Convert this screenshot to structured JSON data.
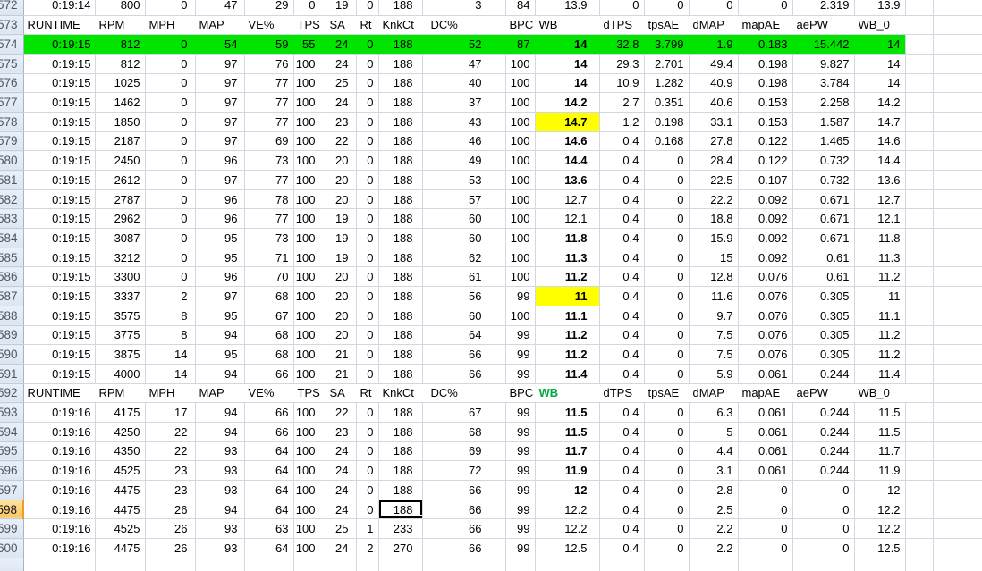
{
  "sheet": {
    "columns": [
      "RUNTIME",
      "RPM",
      "MPH",
      "MAP",
      "VE%",
      "TPS",
      "SA",
      "Rt",
      "KnkCt",
      "DC%",
      "BPC",
      "WB",
      "dTPS",
      "tpsAE",
      "dMAP",
      "mapAE",
      "aePW",
      "WB_0"
    ],
    "colors": {
      "row-highlight": "#00e400",
      "cell-highlight": "#ffff00",
      "wb-red": "#d60000",
      "wb-green": "#00a63f",
      "grid-line": "#d0d7e5",
      "active-row-header-border": "#ef9e17"
    },
    "rows": [
      {
        "n": "572",
        "cells": [
          "0:19:14",
          "800",
          "0",
          "47",
          "29",
          "0",
          "19",
          "0",
          "188",
          "3",
          "84",
          "13.9",
          "0",
          "0",
          "0",
          "0",
          "2.319",
          "13.9"
        ],
        "wb": "plain"
      },
      {
        "n": "573",
        "header": true
      },
      {
        "n": "574",
        "row_bg": "green",
        "wb": "red",
        "cells": [
          "0:19:15",
          "812",
          "0",
          "54",
          "59",
          "55",
          "24",
          "0",
          "188",
          "52",
          "87",
          "14",
          "32.8",
          "3.799",
          "1.9",
          "0.183",
          "15.442",
          "14"
        ]
      },
      {
        "n": "575",
        "wb": "red",
        "cells": [
          "0:19:15",
          "812",
          "0",
          "97",
          "76",
          "100",
          "24",
          "0",
          "188",
          "47",
          "100",
          "14",
          "29.3",
          "2.701",
          "49.4",
          "0.198",
          "9.827",
          "14"
        ]
      },
      {
        "n": "576",
        "wb": "red",
        "cells": [
          "0:19:15",
          "1025",
          "0",
          "97",
          "77",
          "100",
          "25",
          "0",
          "188",
          "40",
          "100",
          "14",
          "10.9",
          "1.282",
          "40.9",
          "0.198",
          "3.784",
          "14"
        ]
      },
      {
        "n": "577",
        "wb": "red",
        "cells": [
          "0:19:15",
          "1462",
          "0",
          "97",
          "77",
          "100",
          "24",
          "0",
          "188",
          "37",
          "100",
          "14.2",
          "2.7",
          "0.351",
          "40.6",
          "0.153",
          "2.258",
          "14.2"
        ]
      },
      {
        "n": "578",
        "wb": "red",
        "wb_bg": "yellow",
        "cells": [
          "0:19:15",
          "1850",
          "0",
          "97",
          "77",
          "100",
          "23",
          "0",
          "188",
          "43",
          "100",
          "14.7",
          "1.2",
          "0.198",
          "33.1",
          "0.153",
          "1.587",
          "14.7"
        ]
      },
      {
        "n": "579",
        "wb": "red",
        "cells": [
          "0:19:15",
          "2187",
          "0",
          "97",
          "69",
          "100",
          "22",
          "0",
          "188",
          "46",
          "100",
          "14.6",
          "0.4",
          "0.168",
          "27.8",
          "0.122",
          "1.465",
          "14.6"
        ]
      },
      {
        "n": "580",
        "wb": "red",
        "cells": [
          "0:19:15",
          "2450",
          "0",
          "96",
          "73",
          "100",
          "20",
          "0",
          "188",
          "49",
          "100",
          "14.4",
          "0.4",
          "0",
          "28.4",
          "0.122",
          "0.732",
          "14.4"
        ]
      },
      {
        "n": "581",
        "wb": "red",
        "cells": [
          "0:19:15",
          "2612",
          "0",
          "97",
          "77",
          "100",
          "20",
          "0",
          "188",
          "53",
          "100",
          "13.6",
          "0.4",
          "0",
          "22.5",
          "0.107",
          "0.732",
          "13.6"
        ]
      },
      {
        "n": "582",
        "wb": "plain",
        "cells": [
          "0:19:15",
          "2787",
          "0",
          "96",
          "78",
          "100",
          "20",
          "0",
          "188",
          "57",
          "100",
          "12.7",
          "0.4",
          "0",
          "22.2",
          "0.092",
          "0.671",
          "12.7"
        ]
      },
      {
        "n": "583",
        "wb": "plain",
        "cells": [
          "0:19:15",
          "2962",
          "0",
          "96",
          "77",
          "100",
          "19",
          "0",
          "188",
          "60",
          "100",
          "12.1",
          "0.4",
          "0",
          "18.8",
          "0.092",
          "0.671",
          "12.1"
        ]
      },
      {
        "n": "584",
        "wb": "green",
        "cells": [
          "0:19:15",
          "3087",
          "0",
          "95",
          "73",
          "100",
          "19",
          "0",
          "188",
          "60",
          "100",
          "11.8",
          "0.4",
          "0",
          "15.9",
          "0.092",
          "0.671",
          "11.8"
        ]
      },
      {
        "n": "585",
        "wb": "green",
        "cells": [
          "0:19:15",
          "3212",
          "0",
          "95",
          "71",
          "100",
          "19",
          "0",
          "188",
          "62",
          "100",
          "11.3",
          "0.4",
          "0",
          "15",
          "0.092",
          "0.61",
          "11.3"
        ]
      },
      {
        "n": "586",
        "wb": "green",
        "cells": [
          "0:19:15",
          "3300",
          "0",
          "96",
          "70",
          "100",
          "20",
          "0",
          "188",
          "61",
          "100",
          "11.2",
          "0.4",
          "0",
          "12.8",
          "0.076",
          "0.61",
          "11.2"
        ]
      },
      {
        "n": "587",
        "wb": "green",
        "wb_bg": "yellow",
        "cells": [
          "0:19:15",
          "3337",
          "2",
          "97",
          "68",
          "100",
          "20",
          "0",
          "188",
          "56",
          "99",
          "11",
          "0.4",
          "0",
          "11.6",
          "0.076",
          "0.305",
          "11"
        ]
      },
      {
        "n": "588",
        "wb": "green",
        "cells": [
          "0:19:15",
          "3575",
          "8",
          "95",
          "67",
          "100",
          "20",
          "0",
          "188",
          "60",
          "100",
          "11.1",
          "0.4",
          "0",
          "9.7",
          "0.076",
          "0.305",
          "11.1"
        ]
      },
      {
        "n": "589",
        "wb": "green",
        "cells": [
          "0:19:15",
          "3775",
          "8",
          "94",
          "68",
          "100",
          "20",
          "0",
          "188",
          "64",
          "99",
          "11.2",
          "0.4",
          "0",
          "7.5",
          "0.076",
          "0.305",
          "11.2"
        ]
      },
      {
        "n": "590",
        "wb": "green",
        "cells": [
          "0:19:15",
          "3875",
          "14",
          "95",
          "68",
          "100",
          "21",
          "0",
          "188",
          "66",
          "99",
          "11.2",
          "0.4",
          "0",
          "7.5",
          "0.076",
          "0.305",
          "11.2"
        ]
      },
      {
        "n": "591",
        "wb": "green",
        "cells": [
          "0:19:15",
          "4000",
          "14",
          "94",
          "66",
          "100",
          "21",
          "0",
          "188",
          "66",
          "99",
          "11.4",
          "0.4",
          "0",
          "5.9",
          "0.061",
          "0.244",
          "11.4"
        ]
      },
      {
        "n": "592",
        "header": true,
        "wb_green_header": true
      },
      {
        "n": "593",
        "wb": "green",
        "cells": [
          "0:19:16",
          "4175",
          "17",
          "94",
          "66",
          "100",
          "22",
          "0",
          "188",
          "67",
          "99",
          "11.5",
          "0.4",
          "0",
          "6.3",
          "0.061",
          "0.244",
          "11.5"
        ]
      },
      {
        "n": "594",
        "wb": "green",
        "cells": [
          "0:19:16",
          "4250",
          "22",
          "94",
          "66",
          "100",
          "23",
          "0",
          "188",
          "68",
          "99",
          "11.5",
          "0.4",
          "0",
          "5",
          "0.061",
          "0.244",
          "11.5"
        ]
      },
      {
        "n": "595",
        "wb": "green",
        "cells": [
          "0:19:16",
          "4350",
          "22",
          "93",
          "64",
          "100",
          "24",
          "0",
          "188",
          "69",
          "99",
          "11.7",
          "0.4",
          "0",
          "4.4",
          "0.061",
          "0.244",
          "11.7"
        ]
      },
      {
        "n": "596",
        "wb": "green",
        "cells": [
          "0:19:16",
          "4525",
          "23",
          "93",
          "64",
          "100",
          "24",
          "0",
          "188",
          "72",
          "99",
          "11.9",
          "0.4",
          "0",
          "3.1",
          "0.061",
          "0.244",
          "11.9"
        ]
      },
      {
        "n": "597",
        "wb": "green",
        "cells": [
          "0:19:16",
          "4475",
          "23",
          "93",
          "64",
          "100",
          "24",
          "0",
          "188",
          "66",
          "99",
          "12",
          "0.4",
          "0",
          "2.8",
          "0",
          "0",
          "12"
        ]
      },
      {
        "n": "598",
        "wb": "plain",
        "active": true,
        "active_cell": 8,
        "cells": [
          "0:19:16",
          "4475",
          "26",
          "94",
          "64",
          "100",
          "24",
          "0",
          "188",
          "66",
          "99",
          "12.2",
          "0.4",
          "0",
          "2.5",
          "0",
          "0",
          "12.2"
        ]
      },
      {
        "n": "599",
        "wb": "plain",
        "cells": [
          "0:19:16",
          "4525",
          "26",
          "93",
          "63",
          "100",
          "25",
          "1",
          "233",
          "66",
          "99",
          "12.2",
          "0.4",
          "0",
          "2.2",
          "0",
          "0",
          "12.2"
        ]
      },
      {
        "n": "600",
        "wb": "plain",
        "cells": [
          "0:19:16",
          "4475",
          "26",
          "93",
          "64",
          "100",
          "24",
          "2",
          "270",
          "66",
          "99",
          "12.5",
          "0.4",
          "0",
          "2.2",
          "0",
          "0",
          "12.5"
        ]
      },
      {
        "n": "",
        "empty": true
      },
      {
        "n": "",
        "empty": true
      }
    ]
  }
}
